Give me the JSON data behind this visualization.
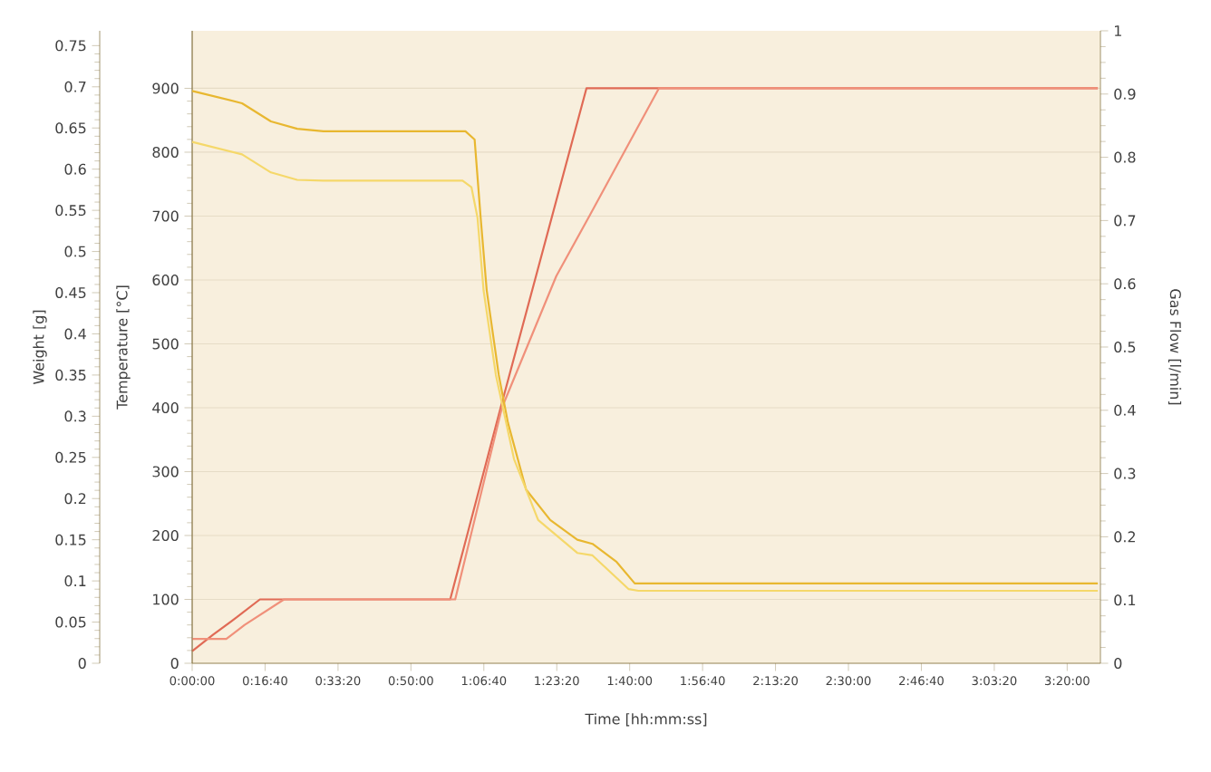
{
  "chart_data": {
    "type": "line",
    "xlabel": "Time [hh:mm:ss]",
    "ylabel": "Temperature [°C]",
    "y2label": "Weight [g]",
    "y3label": "Gas Flow [l/min]",
    "xlim": [
      0,
      3.46
    ],
    "ylim": [
      0,
      990
    ],
    "y2lim": [
      0,
      0.768
    ],
    "y3lim": [
      0,
      1
    ],
    "xticks": [
      {
        "value": 0,
        "label": "0:00:00"
      },
      {
        "value": 0.2778,
        "label": "0:16:40"
      },
      {
        "value": 0.5556,
        "label": "0:33:20"
      },
      {
        "value": 0.8333,
        "label": "0:50:00"
      },
      {
        "value": 1.1111,
        "label": "1:06:40"
      },
      {
        "value": 1.3889,
        "label": "1:23:20"
      },
      {
        "value": 1.6667,
        "label": "1:40:00"
      },
      {
        "value": 1.9444,
        "label": "1:56:40"
      },
      {
        "value": 2.2222,
        "label": "2:13:20"
      },
      {
        "value": 2.5,
        "label": "2:30:00"
      },
      {
        "value": 2.7778,
        "label": "2:46:40"
      },
      {
        "value": 3.0556,
        "label": "3:03:20"
      },
      {
        "value": 3.3333,
        "label": "3:20:00"
      }
    ],
    "yticks": [
      0,
      100,
      200,
      300,
      400,
      500,
      600,
      700,
      800,
      900
    ],
    "y2ticks": [
      0,
      0.05,
      0.1,
      0.15,
      0.2,
      0.25,
      0.3,
      0.35,
      0.4,
      0.45,
      0.5,
      0.55,
      0.6,
      0.65,
      0.7,
      0.75
    ],
    "y3ticks": [
      0,
      0.1,
      0.2,
      0.3,
      0.4,
      0.5,
      0.6,
      0.7,
      0.8,
      0.9,
      1
    ],
    "grid": "y",
    "series": [
      {
        "color": "#e06a55",
        "axis": "y",
        "x": [
          0,
          0.08,
          0.17,
          0.258,
          0.983,
          1.175,
          1.502,
          3.45
        ],
        "values": [
          19,
          45,
          72,
          100,
          100,
          400,
          900,
          900
        ]
      },
      {
        "color": "#f0907a",
        "axis": "y",
        "x": [
          0,
          0.13,
          0.2,
          0.35,
          1.002,
          1.18,
          1.387,
          1.513,
          1.652,
          1.778,
          3.45
        ],
        "values": [
          38,
          38,
          60,
          100,
          100,
          400,
          606,
          700,
          805,
          900,
          900
        ]
      },
      {
        "color": "#e8b730",
        "axis": "y2",
        "x": [
          0,
          0.19,
          0.3,
          0.4,
          0.5,
          1.041,
          1.076,
          1.099,
          1.122,
          1.168,
          1.203,
          1.272,
          1.364,
          1.467,
          1.525,
          1.617,
          1.686,
          3.45
        ],
        "values": [
          0.695,
          0.68,
          0.658,
          0.649,
          0.646,
          0.646,
          0.636,
          0.541,
          0.453,
          0.35,
          0.292,
          0.211,
          0.174,
          0.15,
          0.145,
          0.123,
          0.097,
          0.097
        ]
      },
      {
        "color": "#f5d86a",
        "axis": "y2",
        "x": [
          0,
          0.19,
          0.3,
          0.4,
          0.5,
          1.03,
          1.064,
          1.087,
          1.11,
          1.157,
          1.226,
          1.318,
          1.467,
          1.525,
          1.663,
          1.7,
          3.45
        ],
        "values": [
          0.633,
          0.618,
          0.596,
          0.587,
          0.586,
          0.586,
          0.578,
          0.541,
          0.453,
          0.35,
          0.248,
          0.174,
          0.134,
          0.131,
          0.09,
          0.088,
          0.088
        ]
      }
    ]
  }
}
